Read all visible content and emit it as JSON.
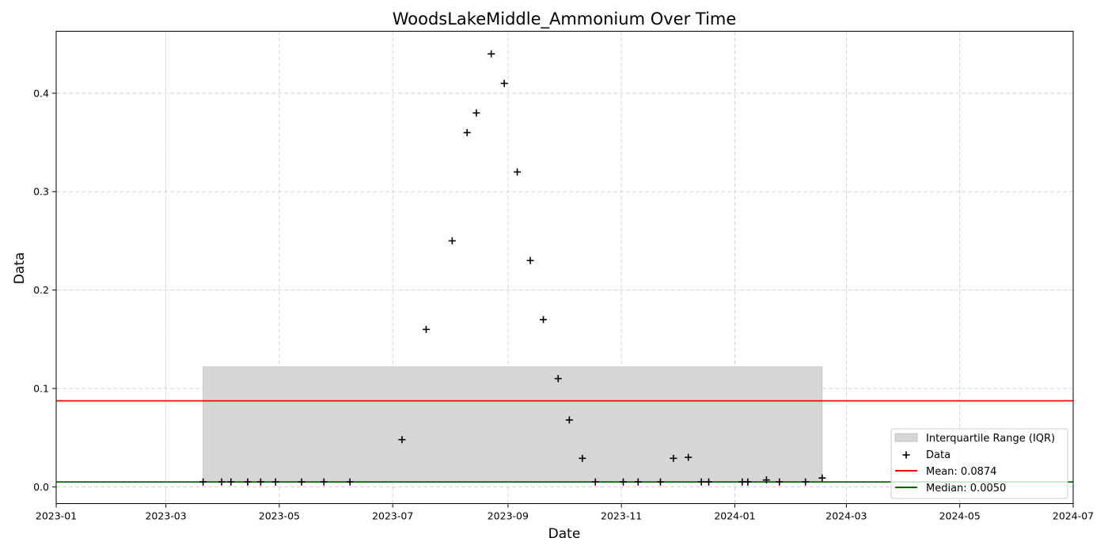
{
  "chart_data": {
    "type": "scatter",
    "title": "WoodsLakeMiddle_Ammonium Over Time",
    "xlabel": "Date",
    "ylabel": "Data",
    "xlim": [
      "2023-01-01",
      "2024-07-01"
    ],
    "ylim": [
      -0.017,
      0.463
    ],
    "grid": true,
    "legend_position": "lower-right",
    "x_ticks": [
      "2023-01",
      "2023-03",
      "2023-05",
      "2023-07",
      "2023-09",
      "2023-11",
      "2024-01",
      "2024-03",
      "2024-05",
      "2024-07"
    ],
    "y_ticks": [
      "0.0",
      "0.1",
      "0.2",
      "0.3",
      "0.4"
    ],
    "iqr": {
      "x_start": "2023-03-21",
      "x_end": "2024-02-17",
      "y_low": 0.005,
      "y_high": 0.122,
      "color": "#d6d6d6"
    },
    "mean_line": {
      "value": 0.0874,
      "color": "#ff0000"
    },
    "median_line": {
      "value": 0.005,
      "color": "#007000"
    },
    "legend": {
      "iqr_label": "Interquartile Range (IQR)",
      "data_label": "Data",
      "mean_label": "Mean: 0.0874",
      "median_label": "Median: 0.0050"
    },
    "series": [
      {
        "name": "Data",
        "color": "#000000",
        "marker": "plus",
        "points": [
          {
            "x": "2023-03-21",
            "y": 0.005
          },
          {
            "x": "2023-03-31",
            "y": 0.005
          },
          {
            "x": "2023-04-05",
            "y": 0.005
          },
          {
            "x": "2023-04-14",
            "y": 0.005
          },
          {
            "x": "2023-04-21",
            "y": 0.005
          },
          {
            "x": "2023-04-29",
            "y": 0.005
          },
          {
            "x": "2023-05-13",
            "y": 0.005
          },
          {
            "x": "2023-05-25",
            "y": 0.005
          },
          {
            "x": "2023-06-08",
            "y": 0.005
          },
          {
            "x": "2023-07-06",
            "y": 0.048
          },
          {
            "x": "2023-07-19",
            "y": 0.16
          },
          {
            "x": "2023-08-02",
            "y": 0.25
          },
          {
            "x": "2023-08-10",
            "y": 0.36
          },
          {
            "x": "2023-08-15",
            "y": 0.38
          },
          {
            "x": "2023-08-23",
            "y": 0.44
          },
          {
            "x": "2023-08-30",
            "y": 0.41
          },
          {
            "x": "2023-09-06",
            "y": 0.32
          },
          {
            "x": "2023-09-13",
            "y": 0.23
          },
          {
            "x": "2023-09-20",
            "y": 0.17
          },
          {
            "x": "2023-09-28",
            "y": 0.11
          },
          {
            "x": "2023-10-04",
            "y": 0.068
          },
          {
            "x": "2023-10-11",
            "y": 0.029
          },
          {
            "x": "2023-10-18",
            "y": 0.005
          },
          {
            "x": "2023-11-02",
            "y": 0.005
          },
          {
            "x": "2023-11-10",
            "y": 0.005
          },
          {
            "x": "2023-11-22",
            "y": 0.005
          },
          {
            "x": "2023-11-29",
            "y": 0.029
          },
          {
            "x": "2023-12-07",
            "y": 0.03
          },
          {
            "x": "2023-12-14",
            "y": 0.005
          },
          {
            "x": "2023-12-18",
            "y": 0.005
          },
          {
            "x": "2024-01-05",
            "y": 0.005
          },
          {
            "x": "2024-01-08",
            "y": 0.005
          },
          {
            "x": "2024-01-18",
            "y": 0.007
          },
          {
            "x": "2024-01-25",
            "y": 0.005
          },
          {
            "x": "2024-02-08",
            "y": 0.005
          },
          {
            "x": "2024-02-17",
            "y": 0.009
          }
        ]
      }
    ]
  }
}
